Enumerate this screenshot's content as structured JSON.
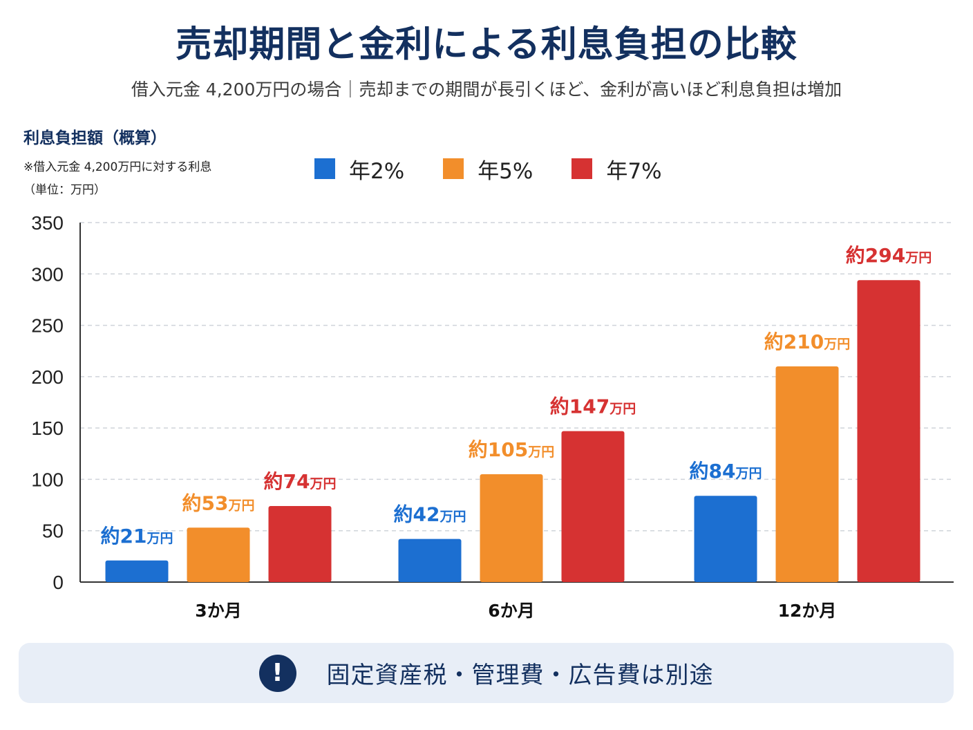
{
  "header": {
    "title": "売却期間と金利による利息負担の比較",
    "subtitle": "借入元金 4,200万円の場合｜売却までの期間が長引くほど、金利が高いほど利息負担は増加"
  },
  "y_axis_info": {
    "title": "利息負担額（概算）",
    "note1": "※借入元金 4,200万円に対する利息",
    "note2": "（単位：万円）"
  },
  "footer_note": {
    "icon": "exclamation-icon",
    "icon_glyph": "!",
    "text": "固定資産税・管理費・広告費は別途"
  },
  "chart_data": {
    "type": "bar",
    "title": "売却期間と金利による利息負担の比較",
    "ylabel": "利息負担額（概算）",
    "ylim": [
      0,
      350
    ],
    "yticks": [
      0,
      50,
      100,
      150,
      200,
      250,
      300,
      350
    ],
    "grid": true,
    "legend_position": "top",
    "categories": [
      "3か月",
      "6か月",
      "12か月"
    ],
    "series": [
      {
        "name": "年2%",
        "color": "#1c6fd1",
        "values": [
          21,
          42,
          84
        ],
        "labels": [
          "約21",
          "約42",
          "約84"
        ]
      },
      {
        "name": "年5%",
        "color": "#f28e2b",
        "values": [
          53,
          105,
          210
        ],
        "labels": [
          "約53",
          "約105",
          "約210"
        ]
      },
      {
        "name": "年7%",
        "color": "#d63232",
        "values": [
          74,
          147,
          294
        ],
        "labels": [
          "約74",
          "約147",
          "約294"
        ]
      }
    ],
    "label_unit": "万円"
  }
}
